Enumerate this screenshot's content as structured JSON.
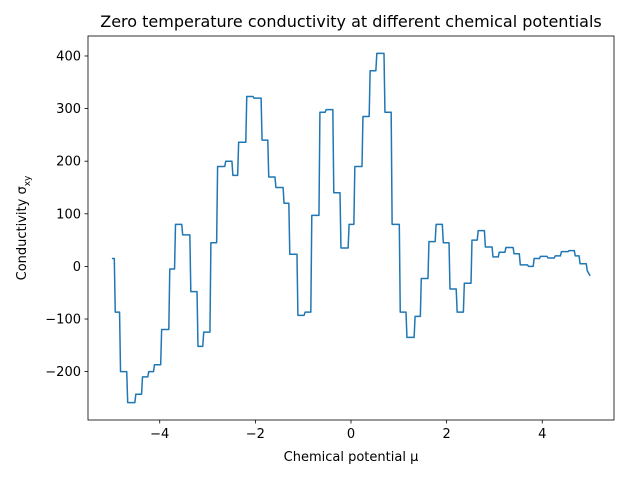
{
  "chart_data": {
    "type": "line",
    "title": "Zero temperature conductivity at different chemical potentials",
    "xlabel": "Chemical potential μ",
    "ylabel": {
      "text": "Conductivity σ",
      "subscript": "xy"
    },
    "xlim": [
      -5.5,
      5.5
    ],
    "ylim": [
      -292,
      438
    ],
    "xticks": [
      {
        "value": -4,
        "label": "−4"
      },
      {
        "value": -2,
        "label": "−2"
      },
      0,
      2,
      4
    ],
    "yticks": [
      {
        "value": -200,
        "label": "−200"
      },
      {
        "value": -100,
        "label": "−100"
      },
      0,
      100,
      200,
      300,
      400
    ],
    "grid": false,
    "series": [
      {
        "color": "#1f77b4",
        "x": [
          -5,
          -4.95,
          -4.93,
          -4.84,
          -4.82,
          -4.69,
          -4.67,
          -4.52,
          -4.5,
          -4.38,
          -4.36,
          -4.25,
          -4.23,
          -4.13,
          -4.11,
          -3.98,
          -3.96,
          -3.81,
          -3.79,
          -3.69,
          -3.67,
          -3.54,
          -3.52,
          -3.37,
          -3.35,
          -3.22,
          -3.2,
          -3.1,
          -3.08,
          -2.95,
          -2.93,
          -2.81,
          -2.79,
          -2.64,
          -2.62,
          -2.49,
          -2.47,
          -2.37,
          -2.35,
          -2.2,
          -2.18,
          -2.05,
          -2.03,
          -1.88,
          -1.86,
          -1.74,
          -1.72,
          -1.59,
          -1.57,
          -1.42,
          -1.4,
          -1.3,
          -1.28,
          -1.13,
          -1.11,
          -0.98,
          -0.96,
          -0.84,
          -0.82,
          -0.67,
          -0.65,
          -0.54,
          -0.52,
          -0.38,
          -0.36,
          -0.23,
          -0.21,
          -0.06,
          -0.04,
          0.06,
          0.08,
          0.23,
          0.25,
          0.38,
          0.4,
          0.52,
          0.54,
          0.69,
          0.71,
          0.84,
          0.86,
          1.01,
          1.03,
          1.15,
          1.17,
          1.32,
          1.34,
          1.45,
          1.47,
          1.61,
          1.63,
          1.76,
          1.78,
          1.91,
          1.93,
          2.05,
          2.07,
          2.2,
          2.22,
          2.35,
          2.37,
          2.51,
          2.53,
          2.64,
          2.66,
          2.79,
          2.81,
          2.95,
          2.97,
          3.08,
          3.1,
          3.22,
          3.24,
          3.39,
          3.41,
          3.52,
          3.54,
          3.69,
          3.71,
          3.81,
          3.83,
          3.94,
          3.96,
          4.1,
          4.12,
          4.25,
          4.27,
          4.38,
          4.4,
          4.54,
          4.56,
          4.67,
          4.69,
          4.77,
          4.79,
          4.92,
          4.94,
          5.0
        ],
        "values": [
          15,
          15,
          -87,
          -87,
          -200,
          -200,
          -259,
          -259,
          -243,
          -243,
          -210,
          -210,
          -200,
          -200,
          -187,
          -187,
          -120,
          -120,
          -5,
          -5,
          80,
          80,
          60,
          60,
          -48,
          -48,
          -152,
          -152,
          -125,
          -125,
          45,
          45,
          190,
          190,
          200,
          200,
          173,
          173,
          236,
          236,
          323,
          323,
          320,
          320,
          240,
          240,
          170,
          170,
          150,
          150,
          120,
          120,
          23,
          23,
          -93,
          -93,
          -87,
          -87,
          97,
          97,
          293,
          293,
          298,
          298,
          140,
          140,
          35,
          35,
          80,
          80,
          190,
          190,
          285,
          285,
          372,
          372,
          405,
          405,
          293,
          293,
          80,
          80,
          -87,
          -87,
          -135,
          -135,
          -95,
          -95,
          -23,
          -23,
          47,
          47,
          80,
          80,
          45,
          45,
          -43,
          -43,
          -87,
          -87,
          -32,
          -32,
          50,
          50,
          68,
          68,
          37,
          37,
          18,
          18,
          27,
          27,
          36,
          36,
          24,
          24,
          3,
          3,
          0,
          0,
          15,
          15,
          19,
          19,
          16,
          16,
          20,
          20,
          28,
          28,
          30,
          30,
          20,
          20,
          5,
          5,
          -8,
          -18
        ]
      }
    ]
  }
}
